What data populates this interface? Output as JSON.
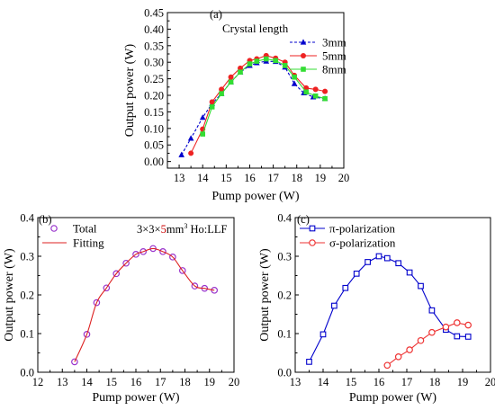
{
  "chart_data": [
    {
      "panel_label": "(a)",
      "type": "line",
      "xlabel": "Pump power (W)",
      "ylabel": "Output power (W)",
      "xlim": [
        12.5,
        20
      ],
      "ylim": [
        -0.02,
        0.45
      ],
      "x_ticks": [
        "13",
        "14",
        "15",
        "16",
        "17",
        "18",
        "19",
        "20"
      ],
      "y_ticks": [
        "0.00",
        "0.05",
        "0.10",
        "0.15",
        "0.20",
        "0.25",
        "0.30",
        "0.35",
        "0.40",
        "0.45"
      ],
      "legend_title": "Crystal length",
      "legend_position": "top-right",
      "series": [
        {
          "name": "3mm",
          "color": "#0000cc",
          "marker": "triangle",
          "line": "dashed",
          "x": [
            13.1,
            13.5,
            14.0,
            14.4,
            14.8,
            15.2,
            15.6,
            16.0,
            16.3,
            16.7,
            17.1,
            17.5,
            17.9,
            18.3,
            18.7,
            19.2
          ],
          "y": [
            0.02,
            0.07,
            0.133,
            0.175,
            0.205,
            0.24,
            0.27,
            0.29,
            0.298,
            0.303,
            0.302,
            0.285,
            0.235,
            0.207,
            0.195,
            0.19
          ]
        },
        {
          "name": "5mm",
          "color": "#ee2222",
          "marker": "circle",
          "line": "solid",
          "x": [
            13.5,
            14.0,
            14.4,
            14.8,
            15.2,
            15.6,
            16.0,
            16.3,
            16.7,
            17.1,
            17.5,
            17.9,
            18.4,
            18.8,
            19.2
          ],
          "y": [
            0.025,
            0.098,
            0.18,
            0.218,
            0.255,
            0.282,
            0.305,
            0.31,
            0.32,
            0.312,
            0.3,
            0.26,
            0.222,
            0.218,
            0.212
          ]
        },
        {
          "name": "8mm",
          "color": "#33dd33",
          "marker": "square",
          "line": "solid",
          "x": [
            14.0,
            14.4,
            14.8,
            15.2,
            15.6,
            16.0,
            16.3,
            16.7,
            17.1,
            17.5,
            17.9,
            18.4,
            18.8,
            19.2
          ],
          "y": [
            0.083,
            0.165,
            0.205,
            0.24,
            0.27,
            0.295,
            0.303,
            0.31,
            0.305,
            0.29,
            0.255,
            0.21,
            0.198,
            0.19
          ]
        }
      ]
    },
    {
      "panel_label": "(b)",
      "type": "scatter",
      "xlabel": "Pump power (W)",
      "ylabel": "Output power (W)",
      "xlim": [
        12,
        20
      ],
      "ylim": [
        0,
        0.4
      ],
      "x_ticks": [
        "12",
        "13",
        "14",
        "15",
        "16",
        "17",
        "18",
        "19",
        "20"
      ],
      "y_ticks": [
        "0.0",
        "0.1",
        "0.2",
        "0.3",
        "0.4"
      ],
      "legend_position": "top-left",
      "annotation": {
        "prefix": "3×3×",
        "highlight": "5",
        "suffix": "mm",
        "superscript": "3",
        "tail": " Ho:LLF",
        "highlight_color": "#cc0000"
      },
      "series": [
        {
          "name": "Total",
          "color": "#9933cc",
          "marker": "hollow-circle",
          "x": [
            13.5,
            14.0,
            14.4,
            14.8,
            15.2,
            15.6,
            16.0,
            16.3,
            16.7,
            17.1,
            17.5,
            17.9,
            18.4,
            18.8,
            19.2
          ],
          "y": [
            0.027,
            0.098,
            0.18,
            0.218,
            0.255,
            0.282,
            0.305,
            0.312,
            0.32,
            0.312,
            0.298,
            0.263,
            0.223,
            0.217,
            0.212
          ]
        },
        {
          "name": "Fitting",
          "color": "#dd2222",
          "marker": "none",
          "line": "smooth",
          "x": [
            13.5,
            14.0,
            14.4,
            14.8,
            15.2,
            15.6,
            16.0,
            16.3,
            16.7,
            17.1,
            17.5,
            17.9,
            18.4,
            18.8,
            19.2
          ],
          "y": [
            0.027,
            0.098,
            0.18,
            0.218,
            0.255,
            0.282,
            0.305,
            0.312,
            0.32,
            0.312,
            0.298,
            0.263,
            0.223,
            0.217,
            0.212
          ]
        }
      ]
    },
    {
      "panel_label": "(c)",
      "type": "line",
      "xlabel": "Pump power (W)",
      "ylabel": "Output power (W)",
      "xlim": [
        13,
        20
      ],
      "ylim": [
        0,
        0.4
      ],
      "x_ticks": [
        "13",
        "14",
        "15",
        "16",
        "17",
        "18",
        "19",
        "20"
      ],
      "y_ticks": [
        "0.0",
        "0.1",
        "0.2",
        "0.3",
        "0.4"
      ],
      "legend_position": "top-left",
      "series": [
        {
          "name": "π-polarization",
          "color": "#0000cc",
          "marker": "hollow-square",
          "line": "solid",
          "x": [
            13.5,
            14.0,
            14.4,
            14.8,
            15.2,
            15.6,
            16.0,
            16.3,
            16.7,
            17.1,
            17.5,
            17.9,
            18.4,
            18.8,
            19.2
          ],
          "y": [
            0.027,
            0.098,
            0.172,
            0.218,
            0.255,
            0.285,
            0.3,
            0.295,
            0.282,
            0.258,
            0.223,
            0.16,
            0.11,
            0.093,
            0.092
          ]
        },
        {
          "name": "σ-polarization",
          "color": "#ee3333",
          "marker": "hollow-circle",
          "line": "solid",
          "x": [
            16.3,
            16.7,
            17.1,
            17.5,
            17.9,
            18.4,
            18.8,
            19.2
          ],
          "y": [
            0.018,
            0.04,
            0.058,
            0.082,
            0.103,
            0.117,
            0.128,
            0.122
          ]
        }
      ]
    }
  ]
}
